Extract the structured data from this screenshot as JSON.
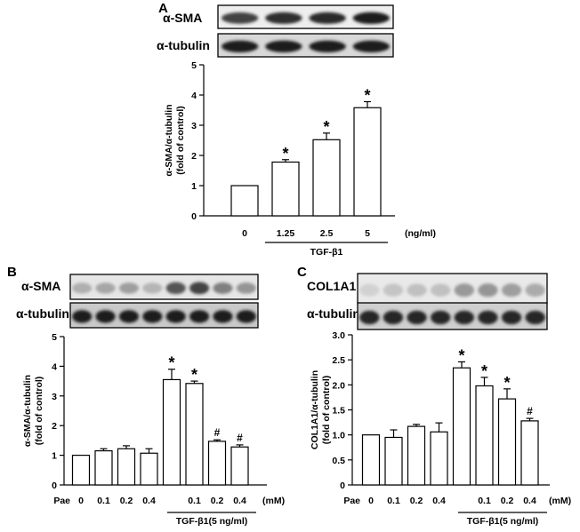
{
  "panels": {
    "A": {
      "letter": "A",
      "blot_top": "α-SMA",
      "blot_bottom": "α-tubulin"
    },
    "B": {
      "letter": "B",
      "blot_top": "α-SMA",
      "blot_bottom": "α-tubulin"
    },
    "C": {
      "letter": "C",
      "blot_top": "COL1A1",
      "blot_bottom": "α-tubulin"
    }
  },
  "chart_data": [
    {
      "id": "A",
      "type": "bar",
      "title": "",
      "ylabel": "α-SMA/α-tubulin (fold of control)",
      "ylabel_lines": [
        "α-SMA/α-tubulin",
        "(fold of control)"
      ],
      "xlabel": "TGF-β1",
      "unit": "(ng/ml)",
      "categories": [
        "0",
        "1.25",
        "2.5",
        "5"
      ],
      "values": [
        1.0,
        1.78,
        2.52,
        3.58
      ],
      "errors": [
        0.0,
        0.08,
        0.22,
        0.2
      ],
      "marks": [
        "",
        "*",
        "*",
        "*"
      ],
      "ylim": [
        0,
        5
      ],
      "yticks": [
        0,
        1,
        2,
        3,
        4,
        5
      ],
      "ytick_labels": [
        "0",
        "1",
        "2",
        "3",
        "4",
        "5"
      ],
      "grid": false
    },
    {
      "id": "B",
      "type": "bar",
      "title": "",
      "ylabel": "α-SMA/α-tubulin (fold of control)",
      "ylabel_lines": [
        "α-SMA/α-tubulin",
        "(fold of control)"
      ],
      "row_label": "Pae",
      "categories": [
        "0",
        "0.1",
        "0.2",
        "0.4",
        "",
        "0.1",
        "0.2",
        "0.4"
      ],
      "unit": "(mM)",
      "group_label": "TGF-β1(5 ng/ml)",
      "values": [
        1.0,
        1.15,
        1.22,
        1.07,
        3.55,
        3.42,
        1.47,
        1.28
      ],
      "errors": [
        0.0,
        0.07,
        0.1,
        0.15,
        0.35,
        0.08,
        0.05,
        0.07
      ],
      "marks": [
        "",
        "",
        "",
        "",
        "*",
        "*",
        "#",
        "#"
      ],
      "ylim": [
        0,
        5
      ],
      "yticks": [
        0,
        1,
        2,
        3,
        4,
        5
      ],
      "ytick_labels": [
        "0",
        "1",
        "2",
        "3",
        "4",
        "5"
      ],
      "grid": false
    },
    {
      "id": "C",
      "type": "bar",
      "title": "",
      "ylabel": "COL1A1/α-tubulin (fold of control)",
      "ylabel_lines": [
        "COL1A1/α-tubulin",
        "(fold of control)"
      ],
      "row_label": "Pae",
      "categories": [
        "0",
        "0.1",
        "0.2",
        "0.4",
        "",
        "0.1",
        "0.2",
        "0.4"
      ],
      "unit": "(mM)",
      "group_label": "TGF-β1(5 ng/ml)",
      "values": [
        1.0,
        0.95,
        1.17,
        1.06,
        2.34,
        1.98,
        1.72,
        1.28
      ],
      "errors": [
        0.0,
        0.15,
        0.04,
        0.18,
        0.12,
        0.17,
        0.2,
        0.05
      ],
      "marks": [
        "",
        "",
        "",
        "",
        "*",
        "*",
        "*",
        "#"
      ],
      "ylim": [
        0,
        3
      ],
      "yticks": [
        0,
        0.5,
        1,
        1.5,
        2,
        2.5,
        3
      ],
      "ytick_labels": [
        "0",
        "0.5",
        "1.0",
        "1.5",
        "2.0",
        "2.5",
        "3.0"
      ],
      "grid": false
    }
  ]
}
